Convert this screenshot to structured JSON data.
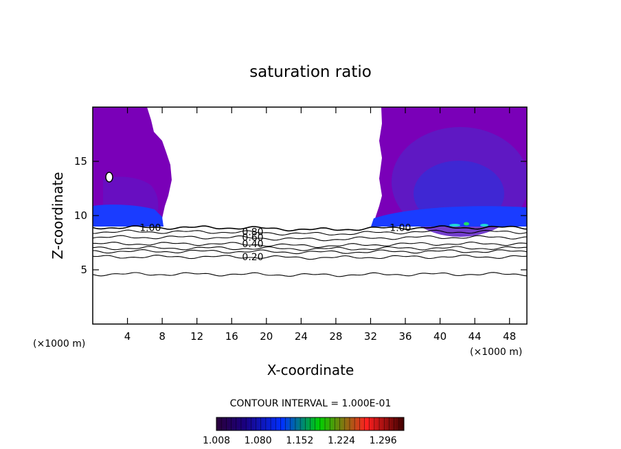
{
  "chart_data": {
    "type": "contour",
    "title": "saturation ratio",
    "xlabel": "X-coordinate",
    "ylabel": "Z-coordinate",
    "x_unit_left": "(×1000 m)",
    "x_unit_right": "(×1000 m)",
    "xlim": [
      0,
      50
    ],
    "ylim": [
      0,
      20
    ],
    "x_ticks": [
      4,
      8,
      12,
      16,
      20,
      24,
      28,
      32,
      36,
      40,
      44,
      48
    ],
    "y_ticks": [
      5,
      10,
      15
    ],
    "contour_interval_text": "CONTOUR INTERVAL = 1.000E-01",
    "contour_lines": [
      {
        "level": "1.00",
        "label_x": [
          5.4,
          34.2
        ],
        "z": 8.9
      },
      {
        "level": "0.80",
        "label_x": [
          17.2
        ],
        "z": 8.5
      },
      {
        "level": "0.60",
        "label_x": [
          17.2
        ],
        "z": 8.0
      },
      {
        "level": "0.40",
        "label_x": [
          17.2
        ],
        "z": 7.4
      },
      {
        "level": "0.20",
        "label_x": [
          17.2
        ],
        "z": 6.2
      },
      {
        "level": "",
        "z": 7.0
      },
      {
        "level": "",
        "z": 6.7
      },
      {
        "level": "",
        "z": 4.6
      }
    ],
    "supersaturated_regions": [
      {
        "x_range": [
          0,
          8.3
        ],
        "z_range": [
          9.0,
          20
        ]
      },
      {
        "x_range": [
          31.8,
          50
        ],
        "z_range": [
          9.0,
          20
        ]
      }
    ],
    "colorbar": {
      "min": 1.008,
      "max": 1.332,
      "tick_labels": [
        "1.008",
        "1.080",
        "1.152",
        "1.224",
        "1.296"
      ],
      "colors": [
        "#2a003a",
        "#1a0080",
        "#0030ff",
        "#00d000",
        "#ff2020",
        "#400000"
      ]
    },
    "colors": {
      "region_fill": "#7a00b8",
      "region_mid": "#5a1cc4",
      "region_deep": "#3a2ad6",
      "band_fill": "#1a3cff",
      "spot_green": "#20e060",
      "spot_cyan": "#20d8d8"
    }
  }
}
